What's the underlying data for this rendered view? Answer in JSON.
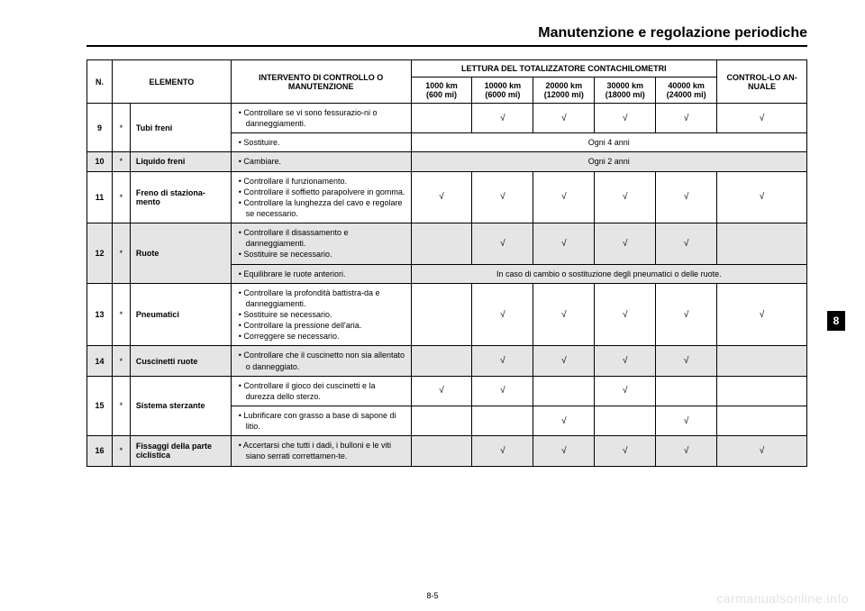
{
  "colors": {
    "shade": "#e5e5e5",
    "border": "#000000",
    "text": "#000000",
    "background": "#ffffff",
    "watermark": "#e2e2e2"
  },
  "fonts": {
    "title_size_pt": 16,
    "header_size_pt": 9,
    "body_size_pt": 9,
    "tab_size_pt": 12
  },
  "section_title": "Manutenzione e regolazione periodiche",
  "page_num": "8-5",
  "side_tab": "8",
  "watermark": "carmanualsonline.info",
  "tick_glyph": "√",
  "headers": {
    "n": "N.",
    "elemento": "ELEMENTO",
    "intervento": "INTERVENTO DI CONTROLLO O MANUTENZIONE",
    "lettura": "LETTURA DEL TOTALIZZATORE CONTACHILOMETRI",
    "annuale": "CONTROL-LO AN-NUALE",
    "km": [
      "1000 km (600 mi)",
      "10000 km (6000 mi)",
      "20000 km (12000 mi)",
      "30000 km (18000 mi)",
      "40000 km (24000 mi)"
    ]
  },
  "rows": [
    {
      "num": "9",
      "ast": "*",
      "elemento": "Tubi freni",
      "shade": false,
      "lines": [
        {
          "actions": [
            "Controllare se vi sono fessurazio-ni o danneggiamenti."
          ],
          "ticks": [
            false,
            true,
            true,
            true,
            true,
            true
          ],
          "span_note": null
        },
        {
          "actions": [
            "Sostituire."
          ],
          "ticks": null,
          "span_note": "Ogni 4 anni"
        }
      ]
    },
    {
      "num": "10",
      "ast": "*",
      "elemento": "Liquido freni",
      "shade": true,
      "lines": [
        {
          "actions": [
            "Cambiare."
          ],
          "ticks": null,
          "span_note": "Ogni 2 anni"
        }
      ]
    },
    {
      "num": "11",
      "ast": "*",
      "elemento": "Freno di staziona-mento",
      "shade": false,
      "lines": [
        {
          "actions": [
            "Controllare il funzionamento.",
            "Controllare il soffietto parapolvere in gomma.",
            "Controllare la lunghezza del cavo e regolare se necessario."
          ],
          "ticks": [
            true,
            true,
            true,
            true,
            true,
            true
          ],
          "span_note": null
        }
      ]
    },
    {
      "num": "12",
      "ast": "*",
      "elemento": "Ruote",
      "shade": true,
      "lines": [
        {
          "actions": [
            "Controllare il disassamento e danneggiamenti.",
            "Sostituire se necessario."
          ],
          "ticks": [
            false,
            true,
            true,
            true,
            true,
            false
          ],
          "span_note": null
        },
        {
          "actions": [
            "Equilibrare le ruote anteriori."
          ],
          "ticks": null,
          "span_note": "In caso di cambio o sostituzione degli pneumatici o delle ruote."
        }
      ]
    },
    {
      "num": "13",
      "ast": "*",
      "elemento": "Pneumatici",
      "shade": false,
      "lines": [
        {
          "actions": [
            "Controllare la profondità battistra-da e danneggiamenti.",
            "Sostituire se necessario.",
            "Controllare la pressione dell'aria.",
            "Correggere se necessario."
          ],
          "ticks": [
            false,
            true,
            true,
            true,
            true,
            true
          ],
          "span_note": null
        }
      ]
    },
    {
      "num": "14",
      "ast": "*",
      "elemento": "Cuscinetti ruote",
      "shade": true,
      "lines": [
        {
          "actions": [
            "Controllare che il cuscinetto non sia allentato o danneggiato."
          ],
          "ticks": [
            false,
            true,
            true,
            true,
            true,
            false
          ],
          "span_note": null
        }
      ]
    },
    {
      "num": "15",
      "ast": "*",
      "elemento": "Sistema sterzante",
      "shade": false,
      "lines": [
        {
          "actions": [
            "Controllare il gioco dei cuscinetti e la durezza dello sterzo."
          ],
          "ticks": [
            true,
            true,
            false,
            true,
            false,
            false
          ],
          "span_note": null
        },
        {
          "actions": [
            "Lubrificare con grasso a base di sapone di litio."
          ],
          "ticks": [
            false,
            false,
            true,
            false,
            true,
            false
          ],
          "span_note": null
        }
      ]
    },
    {
      "num": "16",
      "ast": "*",
      "elemento": "Fissaggi della parte ciclistica",
      "shade": true,
      "lines": [
        {
          "actions": [
            "Accertarsi che tutti i dadi, i bulloni e le viti siano serrati correttamen-te."
          ],
          "ticks": [
            false,
            true,
            true,
            true,
            true,
            true
          ],
          "span_note": null
        }
      ]
    }
  ]
}
